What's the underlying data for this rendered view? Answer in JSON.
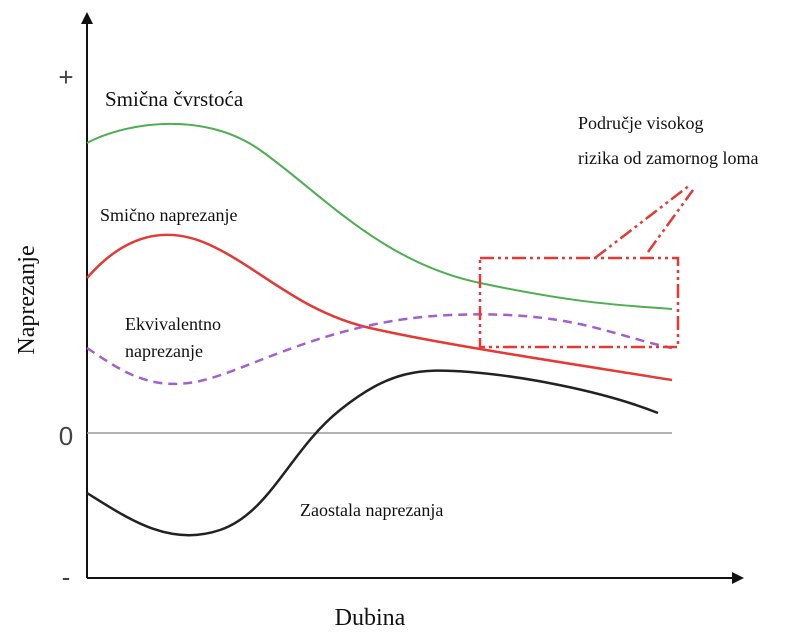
{
  "y_axis": {
    "label": "Naprezanje",
    "ticks": [
      "+",
      "0",
      "-"
    ]
  },
  "x_axis": {
    "label": "Dubina"
  },
  "curves": [
    {
      "label": [
        "Smična čvrstoća"
      ]
    },
    {
      "label": [
        "Smično naprezanje"
      ]
    },
    {
      "label": [
        "Ekvivalentno",
        "naprezanje"
      ]
    },
    {
      "label": [
        "Zaostala naprezanja"
      ]
    }
  ],
  "annotation": {
    "lines": [
      "Područje visokog",
      "rizika od zamornog loma"
    ]
  }
}
